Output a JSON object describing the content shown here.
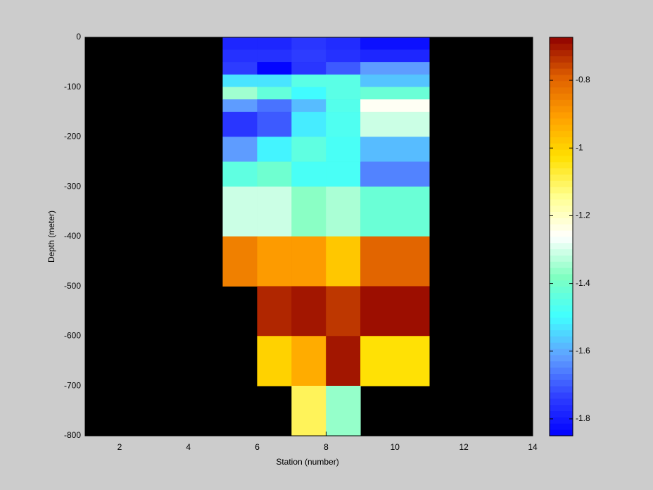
{
  "chart_data": {
    "type": "heatmap",
    "xlabel": "Station (number)",
    "ylabel": "Depth (meter)",
    "x_edges": [
      5,
      6,
      7,
      8,
      9,
      11
    ],
    "y_edges": [
      0,
      -25,
      -50,
      -75,
      -100,
      -125,
      -150,
      -200,
      -250,
      -300,
      -400,
      -500,
      -600,
      -700,
      -800
    ],
    "values": [
      [
        -1.78,
        -1.78,
        -1.75,
        -1.77,
        -1.82
      ],
      [
        -1.76,
        -1.76,
        -1.74,
        -1.76,
        -1.78
      ],
      [
        -1.74,
        -1.84,
        -1.75,
        -1.7,
        -1.62
      ],
      [
        -1.53,
        -1.53,
        -1.45,
        -1.45,
        -1.57
      ],
      [
        -1.35,
        -1.43,
        -1.5,
        -1.45,
        -1.42
      ],
      [
        -1.62,
        -1.67,
        -1.58,
        -1.46,
        -1.25
      ],
      [
        -1.75,
        -1.7,
        -1.52,
        -1.47,
        -1.31
      ],
      [
        -1.62,
        -1.51,
        -1.44,
        -1.48,
        -1.58
      ],
      [
        -1.44,
        -1.41,
        -1.48,
        -1.48,
        -1.65
      ],
      [
        -1.31,
        -1.31,
        -1.37,
        -1.34,
        -1.42
      ],
      [
        -0.85,
        -0.9,
        -0.9,
        -0.98,
        -0.8
      ],
      [
        null,
        -0.72,
        -0.7,
        -0.74,
        -0.69
      ],
      [
        null,
        -1.0,
        -0.93,
        -0.7,
        -1.03
      ],
      [
        null,
        null,
        -1.1,
        -1.36,
        null
      ]
    ],
    "xlim": [
      1,
      14
    ],
    "ylim": [
      -800,
      0
    ],
    "xticks": [
      2,
      4,
      6,
      8,
      10,
      12,
      14
    ],
    "yticks": [
      0,
      -100,
      -200,
      -300,
      -400,
      -500,
      -600,
      -700,
      -800
    ],
    "clim": [
      -1.85,
      -0.673
    ],
    "cticks": [
      -0.8,
      -1,
      -1.2,
      -1.4,
      -1.6,
      -1.8
    ],
    "colormap": [
      "#0000ff",
      "#3040ff",
      "#60a0ff",
      "#40ffff",
      "#80ffc0",
      "#ffffff",
      "#ffff90",
      "#ffe000",
      "#ffa000",
      "#e06000",
      "#900000"
    ],
    "background": "#000000"
  }
}
